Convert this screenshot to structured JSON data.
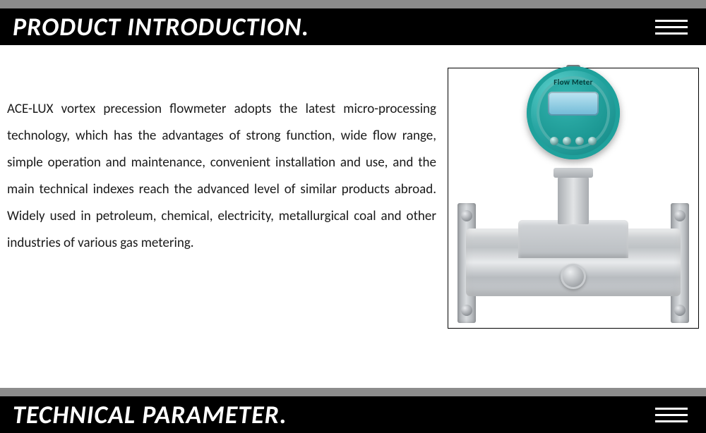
{
  "layout": {
    "colors": {
      "page_bg": "#ffffff",
      "strip_gray": "#8c8c8c",
      "header_bg": "#000000",
      "header_text": "#ffffff",
      "body_text": "#1a1a1a",
      "frame_border": "#000000",
      "accent_teal": "#2aa7a4",
      "metal_light": "#d8dadc",
      "metal_dark": "#a9adb1",
      "lcd_blue": "#6fb9d6"
    },
    "typography": {
      "header_fontsize_pt": 27,
      "header_weight": "700",
      "header_style": "italic",
      "body_fontsize_pt": 14,
      "body_line_height": 2.0
    }
  },
  "sections": {
    "intro_title": "PRODUCT INTRODUCTION.",
    "tech_title": "TECHNICAL PARAMETER."
  },
  "product": {
    "display_label": "Flow Meter",
    "description": "ACE-LUX vortex precession flowmeter adopts the latest micro-processing technology, which has the advantages of strong function, wide flow range, simple operation and maintenance, convenient installation and use, and the main technical indexes reach the advanced level of similar products abroad. Widely used in petroleum, chemical, electricity, metallurgical coal and other industries of various gas metering."
  },
  "icons": {
    "menu": "hamburger-three-lines"
  }
}
